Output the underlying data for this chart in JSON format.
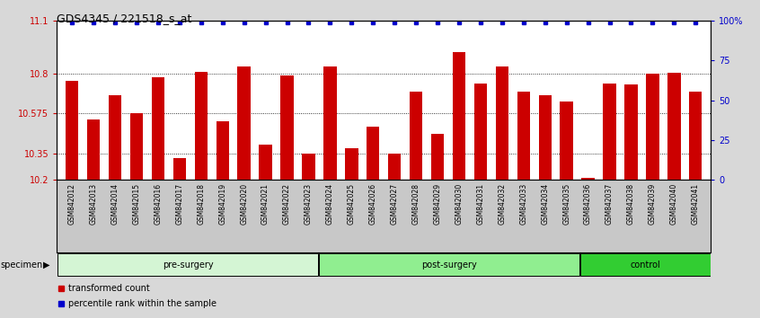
{
  "title": "GDS4345 / 221518_s_at",
  "samples": [
    "GSM842012",
    "GSM842013",
    "GSM842014",
    "GSM842015",
    "GSM842016",
    "GSM842017",
    "GSM842018",
    "GSM842019",
    "GSM842020",
    "GSM842021",
    "GSM842022",
    "GSM842023",
    "GSM842024",
    "GSM842025",
    "GSM842026",
    "GSM842027",
    "GSM842028",
    "GSM842029",
    "GSM842030",
    "GSM842031",
    "GSM842032",
    "GSM842033",
    "GSM842034",
    "GSM842035",
    "GSM842036",
    "GSM842037",
    "GSM842038",
    "GSM842039",
    "GSM842040",
    "GSM842041"
  ],
  "bar_values": [
    10.76,
    10.54,
    10.68,
    10.575,
    10.78,
    10.32,
    10.81,
    10.53,
    10.84,
    10.4,
    10.79,
    10.345,
    10.84,
    10.38,
    10.5,
    10.345,
    10.7,
    10.46,
    10.92,
    10.745,
    10.84,
    10.7,
    10.68,
    10.64,
    10.21,
    10.745,
    10.74,
    10.8,
    10.805,
    10.7
  ],
  "percentile_values": [
    100,
    100,
    100,
    100,
    100,
    100,
    100,
    100,
    100,
    100,
    100,
    100,
    100,
    100,
    100,
    100,
    100,
    100,
    100,
    100,
    100,
    100,
    100,
    100,
    100,
    100,
    100,
    100,
    100,
    100
  ],
  "groups": [
    {
      "label": "pre-surgery",
      "start": 0,
      "end": 12,
      "color": "#d4f5d4"
    },
    {
      "label": "post-surgery",
      "start": 12,
      "end": 24,
      "color": "#90ee90"
    },
    {
      "label": "control",
      "start": 24,
      "end": 30,
      "color": "#32cd32"
    }
  ],
  "bar_color": "#cc0000",
  "percentile_color": "#0000cc",
  "ylim_left": [
    10.2,
    11.1
  ],
  "yticks_left": [
    10.2,
    10.35,
    10.575,
    10.8,
    11.1
  ],
  "ytick_labels_left": [
    "10.2",
    "10.35",
    "10.575",
    "10.8",
    "11.1"
  ],
  "yticks_right": [
    0,
    25,
    50,
    75,
    100
  ],
  "ytick_labels_right": [
    "0",
    "25",
    "50",
    "75",
    "100%"
  ],
  "ylim_right": [
    0,
    100
  ],
  "ylabel_left_color": "#cc0000",
  "ylabel_right_color": "#0000cc",
  "background_color": "#d8d8d8",
  "plot_background": "#ffffff",
  "xtick_area_color": "#c8c8c8",
  "title_fontsize": 9,
  "bar_fontsize": 6,
  "legend_items": [
    "transformed count",
    "percentile rank within the sample"
  ]
}
